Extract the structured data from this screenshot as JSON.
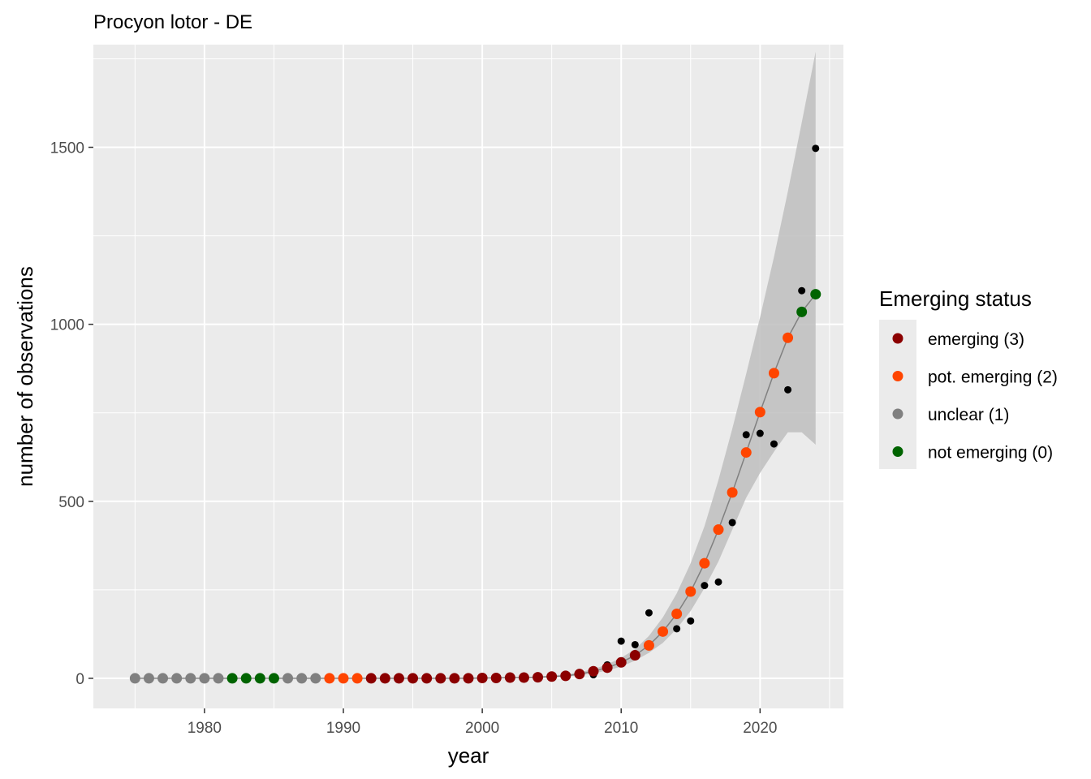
{
  "chart_data": {
    "type": "scatter",
    "title": "Procyon lotor - DE",
    "xlabel": "year",
    "ylabel": "number of observations",
    "xlim": [
      1972,
      2026
    ],
    "ylim": [
      -85,
      1790
    ],
    "x_ticks": [
      1980,
      1990,
      2000,
      2010,
      2020
    ],
    "y_ticks": [
      0,
      500,
      1000,
      1500
    ],
    "grid": true,
    "legend": {
      "title": "Emerging status",
      "position": "right",
      "entries": [
        {
          "code": 3,
          "label": "emerging (3)",
          "color": "#8B0000"
        },
        {
          "code": 2,
          "label": "pot. emerging (2)",
          "color": "#FF4500"
        },
        {
          "code": 1,
          "label": "unclear (1)",
          "color": "#808080"
        },
        {
          "code": 0,
          "label": "not emerging (0)",
          "color": "#006400"
        }
      ]
    },
    "observed": {
      "color": "#000000",
      "x": [
        2008,
        2009,
        2010,
        2011,
        2012,
        2014,
        2015,
        2016,
        2017,
        2018,
        2019,
        2020,
        2021,
        2022,
        2023,
        2024
      ],
      "y": [
        10,
        38,
        105,
        95,
        185,
        140,
        162,
        262,
        272,
        440,
        688,
        692,
        662,
        815,
        1095,
        1497
      ]
    },
    "fitted": {
      "line_color": "#808080",
      "band_color": "#bebebe",
      "x": [
        1975,
        1976,
        1977,
        1978,
        1979,
        1980,
        1981,
        1982,
        1983,
        1984,
        1985,
        1986,
        1987,
        1988,
        1989,
        1990,
        1991,
        1992,
        1993,
        1994,
        1995,
        1996,
        1997,
        1998,
        1999,
        2000,
        2001,
        2002,
        2003,
        2004,
        2005,
        2006,
        2007,
        2008,
        2009,
        2010,
        2011,
        2012,
        2013,
        2014,
        2015,
        2016,
        2017,
        2018,
        2019,
        2020,
        2021,
        2022,
        2023,
        2024
      ],
      "y": [
        0,
        0,
        0,
        0,
        0,
        0,
        0,
        0,
        0,
        0,
        0,
        0,
        0,
        0,
        0,
        0,
        0,
        0,
        0,
        0,
        0,
        0,
        0,
        0,
        0,
        1,
        1,
        2,
        2,
        3,
        5,
        7,
        12,
        20,
        30,
        45,
        65,
        93,
        132,
        182,
        245,
        325,
        420,
        525,
        638,
        752,
        862,
        962,
        1035,
        1085
      ],
      "status": [
        1,
        1,
        1,
        1,
        1,
        1,
        1,
        0,
        0,
        0,
        0,
        1,
        1,
        1,
        2,
        2,
        2,
        3,
        3,
        3,
        3,
        3,
        3,
        3,
        3,
        3,
        3,
        3,
        3,
        3,
        3,
        3,
        3,
        3,
        3,
        3,
        3,
        2,
        2,
        2,
        2,
        2,
        2,
        2,
        2,
        2,
        2,
        2,
        0,
        0
      ],
      "lower": [
        0,
        0,
        0,
        0,
        0,
        0,
        0,
        0,
        0,
        0,
        0,
        0,
        0,
        0,
        0,
        0,
        0,
        0,
        0,
        0,
        0,
        0,
        0,
        0,
        0,
        0,
        0,
        1,
        1,
        2,
        3,
        5,
        8,
        14,
        22,
        33,
        50,
        72,
        100,
        140,
        190,
        255,
        330,
        420,
        510,
        580,
        640,
        695,
        695,
        660
      ],
      "upper": [
        0,
        0,
        0,
        0,
        0,
        0,
        0,
        0,
        0,
        0,
        0,
        0,
        0,
        0,
        0,
        0,
        0,
        0,
        0,
        0,
        0,
        0,
        0,
        0,
        0,
        1,
        2,
        3,
        4,
        5,
        8,
        11,
        17,
        26,
        39,
        58,
        82,
        120,
        172,
        240,
        325,
        430,
        560,
        705,
        860,
        1020,
        1190,
        1375,
        1570,
        1770
      ]
    }
  }
}
